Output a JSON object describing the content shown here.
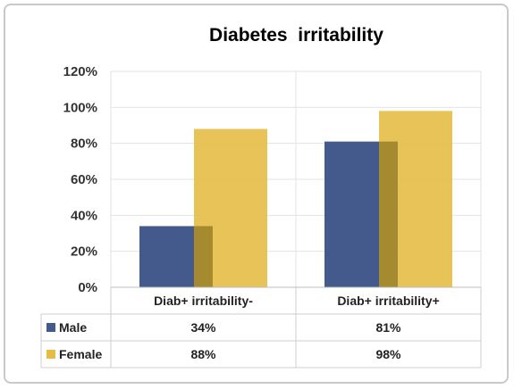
{
  "chart_data": {
    "type": "bar",
    "title": "Diabetes  irritability",
    "categories": [
      "Diab+ irritability-",
      "Diab+ irritability+"
    ],
    "series": [
      {
        "name": "Male",
        "values": [
          34,
          81
        ],
        "labels": [
          "34%",
          "81%"
        ],
        "color": "#44598c"
      },
      {
        "name": "Female",
        "values": [
          88,
          98
        ],
        "labels": [
          "88%",
          "98%"
        ],
        "color": "#e5bc45"
      }
    ],
    "overlap_color": "#a58a30",
    "yticks": [
      "0%",
      "20%",
      "40%",
      "60%",
      "80%",
      "100%",
      "120%"
    ],
    "ylim": [
      0,
      120
    ],
    "ylabel": "",
    "xlabel": "",
    "grid": true,
    "legend": "data-table"
  }
}
